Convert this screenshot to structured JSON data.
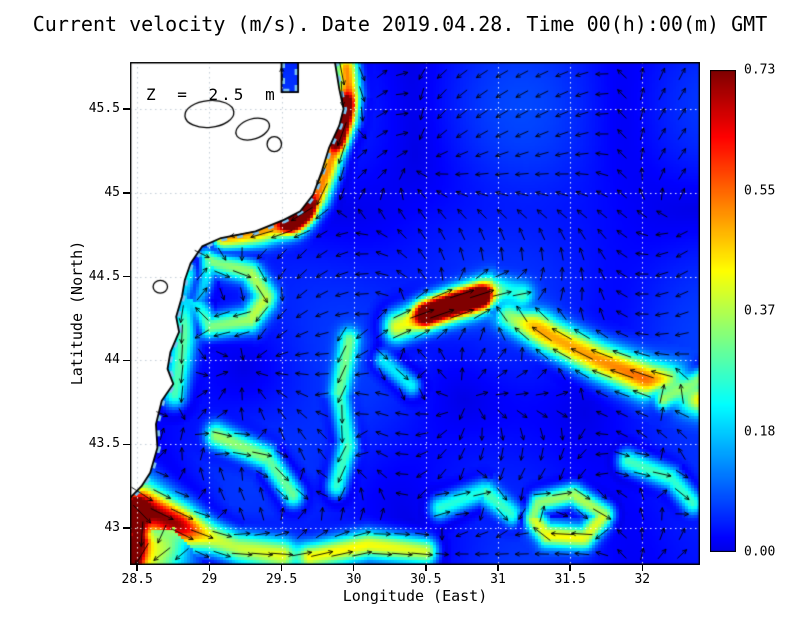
{
  "chart_data": {
    "type": "heatmap",
    "overlay": "quiver",
    "title": "Current velocity (m/s). Date 2019.04.28. Time 00(h):00(m) GMT",
    "xlabel": "Longitude (East)",
    "ylabel": "Latitude (North)",
    "annotation": "Z = 2.5 m",
    "units": "m/s",
    "x_range": [
      28.45,
      32.4
    ],
    "y_range": [
      42.78,
      45.78
    ],
    "x_ticks": [
      {
        "v": 28.5,
        "label": "28.5"
      },
      {
        "v": 29,
        "label": "29"
      },
      {
        "v": 29.5,
        "label": "29.5"
      },
      {
        "v": 30,
        "label": "30"
      },
      {
        "v": 30.5,
        "label": "30.5"
      },
      {
        "v": 31,
        "label": "31"
      },
      {
        "v": 31.5,
        "label": "31.5"
      },
      {
        "v": 32,
        "label": "32"
      }
    ],
    "y_ticks": [
      {
        "v": 43,
        "label": "43"
      },
      {
        "v": 43.5,
        "label": "43.5"
      },
      {
        "v": 44,
        "label": "44"
      },
      {
        "v": 44.5,
        "label": "44.5"
      },
      {
        "v": 45,
        "label": "45"
      },
      {
        "v": 45.5,
        "label": "45.5"
      }
    ],
    "grid": {
      "show": true,
      "sea_style": "dotted-white",
      "land_style": "dotted-gray"
    },
    "colorbar": {
      "min": 0,
      "max": 0.73,
      "tick_labels": [
        "0.73",
        "0.55",
        "0.37",
        "0.18",
        "0.00"
      ],
      "colormap": "jet"
    },
    "arrows": {
      "color": "#000000",
      "spacing_px": 20
    },
    "sea": {
      "background_color_hint": "#0a42f0"
    },
    "land": {
      "fill": "#ffffff",
      "coast_color": "#000000",
      "coast": [
        [
          29.5,
          45.78
        ],
        [
          29.5,
          45.6
        ],
        [
          29.615,
          45.6
        ],
        [
          29.615,
          45.78
        ],
        [
          29.87,
          45.78
        ],
        [
          29.9,
          45.62
        ],
        [
          29.93,
          45.5
        ],
        [
          29.9,
          45.4
        ],
        [
          29.83,
          45.27
        ],
        [
          29.78,
          45.13
        ],
        [
          29.72,
          44.99
        ],
        [
          29.63,
          44.89
        ],
        [
          29.52,
          44.84
        ],
        [
          29.32,
          44.77
        ],
        [
          29.08,
          44.73
        ],
        [
          28.95,
          44.68
        ],
        [
          28.87,
          44.58
        ],
        [
          28.83,
          44.48
        ],
        [
          28.81,
          44.38
        ],
        [
          28.77,
          44.26
        ],
        [
          28.79,
          44.17
        ],
        [
          28.73,
          44.05
        ],
        [
          28.71,
          43.95
        ],
        [
          28.75,
          43.86
        ],
        [
          28.67,
          43.76
        ],
        [
          28.63,
          43.62
        ],
        [
          28.64,
          43.48
        ],
        [
          28.59,
          43.33
        ],
        [
          28.53,
          43.25
        ],
        [
          28.45,
          43.18
        ]
      ],
      "close_via": [
        [
          28.45,
          45.78
        ]
      ],
      "lakes": [
        {
          "c": [
            29.0,
            45.47
          ],
          "rx": 0.17,
          "ry": 0.08,
          "rot": -5
        },
        {
          "c": [
            29.3,
            45.38
          ],
          "rx": 0.12,
          "ry": 0.06,
          "rot": -18
        },
        {
          "c": [
            29.45,
            45.29
          ],
          "rx": 0.05,
          "ry": 0.045,
          "rot": 0
        },
        {
          "c": [
            28.66,
            44.44
          ],
          "rx": 0.05,
          "ry": 0.038,
          "rot": 0
        }
      ]
    },
    "jets": [
      {
        "name": "danube-coastal-jet",
        "path": [
          [
            29.95,
            45.74
          ],
          [
            29.97,
            45.58
          ],
          [
            29.95,
            45.44
          ],
          [
            29.88,
            45.3
          ],
          [
            29.82,
            45.14
          ],
          [
            29.75,
            44.99
          ],
          [
            29.65,
            44.9
          ]
        ],
        "width": 0.06,
        "peak": 0.55
      },
      {
        "name": "danube-jet-core",
        "path": [
          [
            29.93,
            45.52
          ],
          [
            29.88,
            45.33
          ]
        ],
        "width": 0.045,
        "peak": 0.62
      },
      {
        "name": "cape-red-core",
        "path": [
          [
            29.66,
            44.9
          ],
          [
            29.56,
            44.84
          ]
        ],
        "width": 0.05,
        "peak": 0.73
      },
      {
        "name": "cape-west-jet",
        "path": [
          [
            29.58,
            44.83
          ],
          [
            29.35,
            44.77
          ],
          [
            29.1,
            44.73
          ]
        ],
        "width": 0.06,
        "peak": 0.48
      },
      {
        "name": "coastal-eddy-ring",
        "path": [
          [
            29.0,
            44.6
          ],
          [
            29.28,
            44.53
          ],
          [
            29.4,
            44.38
          ],
          [
            29.28,
            44.24
          ],
          [
            29.0,
            44.2
          ],
          [
            28.9,
            44.35
          ],
          [
            29.0,
            44.6
          ]
        ],
        "width": 0.055,
        "peak": 0.34
      },
      {
        "name": "bulgaria-coastal-jet",
        "path": [
          [
            28.88,
            44.5
          ],
          [
            28.84,
            44.25
          ],
          [
            28.8,
            44.0
          ],
          [
            28.76,
            43.8
          ]
        ],
        "width": 0.065,
        "peak": 0.3
      },
      {
        "name": "left-edge-red-jet",
        "path": [
          [
            28.47,
            43.1
          ],
          [
            28.5,
            42.95
          ],
          [
            28.47,
            42.82
          ]
        ],
        "width": 0.055,
        "peak": 0.7
      },
      {
        "name": "sw-green-halo",
        "path": [
          [
            28.5,
            43.15
          ],
          [
            28.75,
            43.0
          ],
          [
            28.6,
            42.85
          ]
        ],
        "width": 0.14,
        "peak": 0.36
      },
      {
        "name": "sw-arc",
        "path": [
          [
            28.55,
            43.12
          ],
          [
            28.85,
            43.0
          ],
          [
            29.2,
            42.88
          ],
          [
            29.5,
            42.84
          ]
        ],
        "width": 0.075,
        "peak": 0.42
      },
      {
        "name": "sw-arc-upper",
        "path": [
          [
            29.05,
            43.55
          ],
          [
            29.4,
            43.42
          ],
          [
            29.58,
            43.2
          ]
        ],
        "width": 0.06,
        "peak": 0.36
      },
      {
        "name": "bottom-streak",
        "path": [
          [
            29.7,
            42.83
          ],
          [
            30.1,
            42.9
          ],
          [
            30.5,
            42.86
          ]
        ],
        "width": 0.06,
        "peak": 0.4
      },
      {
        "name": "central-jet-core",
        "path": [
          [
            30.5,
            44.28
          ],
          [
            30.7,
            44.34
          ],
          [
            30.88,
            44.38
          ]
        ],
        "width": 0.05,
        "peak": 0.66
      },
      {
        "name": "central-streak",
        "path": [
          [
            30.3,
            44.2
          ],
          [
            30.6,
            44.3
          ],
          [
            30.95,
            44.4
          ],
          [
            31.15,
            44.36
          ]
        ],
        "width": 0.075,
        "peak": 0.45
      },
      {
        "name": "diagonal-band",
        "path": [
          [
            32.4,
            43.8
          ],
          [
            32.05,
            43.88
          ],
          [
            31.7,
            44.0
          ],
          [
            31.35,
            44.15
          ],
          [
            31.08,
            44.3
          ]
        ],
        "width": 0.08,
        "peak": 0.5
      },
      {
        "name": "diagonal-tip",
        "path": [
          [
            32.15,
            43.78
          ],
          [
            32.4,
            43.88
          ]
        ],
        "width": 0.055,
        "peak": 0.58
      },
      {
        "name": "vertical-wisp",
        "path": [
          [
            29.97,
            44.12
          ],
          [
            29.9,
            43.8
          ],
          [
            29.96,
            43.5
          ],
          [
            29.88,
            43.25
          ]
        ],
        "width": 0.055,
        "peak": 0.3
      },
      {
        "name": "se-eddy-ring",
        "path": [
          [
            31.28,
            43.15
          ],
          [
            31.52,
            43.2
          ],
          [
            31.74,
            43.08
          ],
          [
            31.6,
            42.94
          ],
          [
            31.34,
            42.96
          ],
          [
            31.24,
            43.06
          ],
          [
            31.28,
            43.15
          ]
        ],
        "width": 0.05,
        "peak": 0.38
      },
      {
        "name": "south-wisp",
        "path": [
          [
            30.6,
            43.12
          ],
          [
            30.9,
            43.22
          ],
          [
            31.1,
            43.08
          ]
        ],
        "width": 0.055,
        "peak": 0.28
      },
      {
        "name": "mid-wisp",
        "path": [
          [
            30.2,
            44.0
          ],
          [
            30.4,
            43.85
          ]
        ],
        "width": 0.05,
        "peak": 0.26
      },
      {
        "name": "se-corner-wisp",
        "path": [
          [
            31.9,
            43.4
          ],
          [
            32.2,
            43.3
          ],
          [
            32.35,
            43.15
          ]
        ],
        "width": 0.055,
        "peak": 0.3
      }
    ]
  }
}
